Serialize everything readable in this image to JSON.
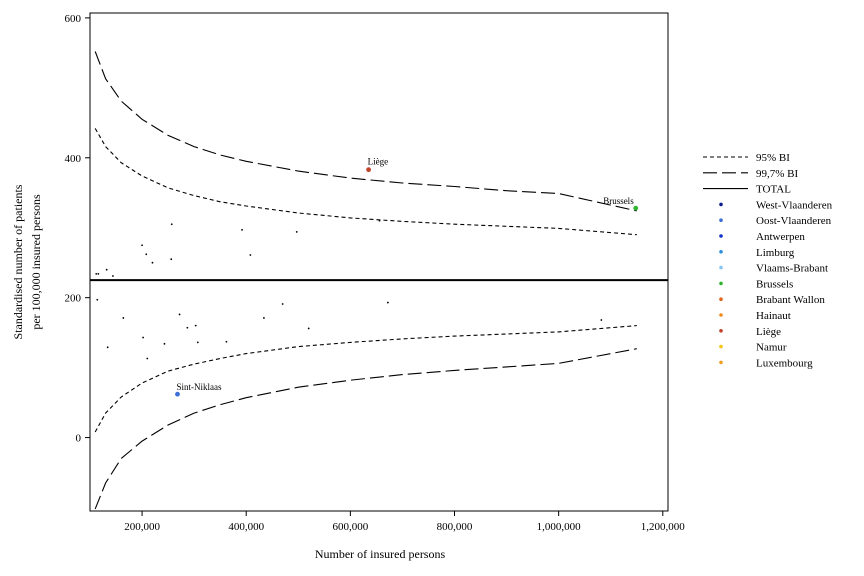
{
  "chart_data": {
    "type": "scatter",
    "xlabel": "Number of insured persons",
    "ylabel_line1": "Standardised number of patients",
    "ylabel_line2": "per 100,000 insured persons",
    "xlim": [
      100000,
      1210000
    ],
    "ylim": [
      -105,
      607
    ],
    "x_ticks": [
      200000,
      400000,
      600000,
      800000,
      1000000,
      1200000
    ],
    "x_tick_labels": [
      "200,000",
      "400,000",
      "600,000",
      "800,000",
      "1,000,000",
      "1,200,000"
    ],
    "y_ticks": [
      0,
      200,
      400,
      600
    ],
    "y_tick_labels": [
      "0",
      "200",
      "400",
      "600"
    ],
    "grid": false,
    "legend_position": "right",
    "total": 225,
    "limits": {
      "x": [
        110000,
        130000,
        160000,
        200000,
        250000,
        300000,
        350000,
        400000,
        500000,
        600000,
        700000,
        800000,
        900000,
        1000000,
        1150000
      ],
      "upper_997": [
        552,
        513,
        481,
        455,
        432,
        416,
        404,
        395,
        381,
        371,
        364,
        359,
        353,
        349,
        324
      ],
      "upper_95": [
        442,
        416,
        393,
        374,
        357,
        346,
        337,
        331,
        321,
        314,
        309,
        305,
        302,
        299,
        290
      ],
      "lower_95": [
        8,
        35,
        58,
        78,
        95,
        105,
        113,
        120,
        130,
        136,
        141,
        145,
        148,
        151,
        160
      ],
      "lower_997": [
        -102,
        -65,
        -30,
        -5,
        18,
        35,
        47,
        57,
        72,
        82,
        90,
        96,
        101,
        106,
        127
      ]
    },
    "legend": [
      {
        "label": "95% BI",
        "kind": "short-dash"
      },
      {
        "label": "99,7% BI",
        "kind": "long-dash"
      },
      {
        "label": "TOTAL",
        "kind": "solid"
      },
      {
        "label": "West-Vlaanderen",
        "kind": "dot",
        "color": "#0b1a8c"
      },
      {
        "label": "Oost-Vlaanderen",
        "kind": "dot",
        "color": "#3d6fd9"
      },
      {
        "label": "Antwerpen",
        "kind": "dot",
        "color": "#1133cc"
      },
      {
        "label": "Limburg",
        "kind": "dot",
        "color": "#2a8fe0"
      },
      {
        "label": "Vlaams-Brabant",
        "kind": "dot",
        "color": "#88c4f0"
      },
      {
        "label": "Brussels",
        "kind": "dot",
        "color": "#2db52d"
      },
      {
        "label": "Brabant Wallon",
        "kind": "dot",
        "color": "#e0651a"
      },
      {
        "label": "Hainaut",
        "kind": "dot",
        "color": "#f08a1c"
      },
      {
        "label": "Liège",
        "kind": "dot",
        "color": "#c0432a"
      },
      {
        "label": "Namur",
        "kind": "dot",
        "color": "#f5c518"
      },
      {
        "label": "Luxembourg",
        "kind": "dot",
        "color": "#f0a020"
      }
    ],
    "points": [
      {
        "x": 112000,
        "y": 234,
        "color": "#000000"
      },
      {
        "x": 116000,
        "y": 234,
        "color": "#000000"
      },
      {
        "x": 114000,
        "y": 197,
        "color": "#000000"
      },
      {
        "x": 132000,
        "y": 240,
        "color": "#000000"
      },
      {
        "x": 144000,
        "y": 231,
        "color": "#000000"
      },
      {
        "x": 134000,
        "y": 129,
        "color": "#000000"
      },
      {
        "x": 164000,
        "y": 171,
        "color": "#000000"
      },
      {
        "x": 200000,
        "y": 275,
        "color": "#000000"
      },
      {
        "x": 208000,
        "y": 262,
        "color": "#000000"
      },
      {
        "x": 220000,
        "y": 250,
        "color": "#000000"
      },
      {
        "x": 202000,
        "y": 143,
        "color": "#000000"
      },
      {
        "x": 210000,
        "y": 113,
        "color": "#000000"
      },
      {
        "x": 257000,
        "y": 305,
        "color": "#000000"
      },
      {
        "x": 256000,
        "y": 255,
        "color": "#000000"
      },
      {
        "x": 243000,
        "y": 134,
        "color": "#000000"
      },
      {
        "x": 272000,
        "y": 176,
        "color": "#000000"
      },
      {
        "x": 287000,
        "y": 157,
        "color": "#000000"
      },
      {
        "x": 303000,
        "y": 160,
        "color": "#000000"
      },
      {
        "x": 307000,
        "y": 136,
        "color": "#000000"
      },
      {
        "x": 362000,
        "y": 137,
        "color": "#000000"
      },
      {
        "x": 392000,
        "y": 297,
        "color": "#000000"
      },
      {
        "x": 408000,
        "y": 261,
        "color": "#000000"
      },
      {
        "x": 434000,
        "y": 171,
        "color": "#000000"
      },
      {
        "x": 470000,
        "y": 191,
        "color": "#000000"
      },
      {
        "x": 497000,
        "y": 294,
        "color": "#000000"
      },
      {
        "x": 520000,
        "y": 156,
        "color": "#000000"
      },
      {
        "x": 656000,
        "y": 310,
        "color": "#000000"
      },
      {
        "x": 672000,
        "y": 193,
        "color": "#000000"
      },
      {
        "x": 1082000,
        "y": 168,
        "color": "#000000"
      },
      {
        "x": 635000,
        "y": 383,
        "color": "#c0432a",
        "label": "Liège"
      },
      {
        "x": 1148000,
        "y": 328,
        "color": "#2db52d",
        "label": "Brussels"
      },
      {
        "x": 268000,
        "y": 62,
        "color": "#3d6fd9",
        "label": "Sint-Niklaas"
      }
    ]
  }
}
